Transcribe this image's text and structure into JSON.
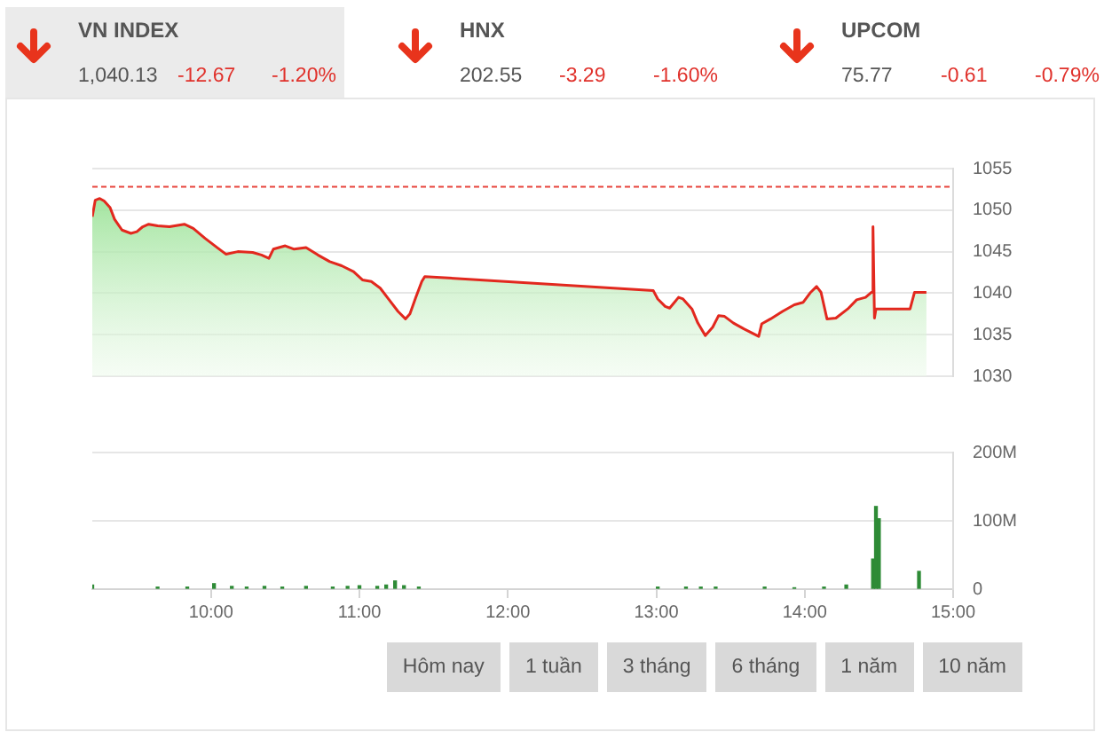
{
  "chart_data": [
    {
      "type": "other",
      "title": "VN INDEX",
      "annotations": [
        "1,040.13",
        "-12.67",
        "-1.20%"
      ]
    },
    {
      "type": "other",
      "title": "HNX",
      "annotations": [
        "202.55",
        "-3.29",
        "-1.60%"
      ]
    },
    {
      "type": "other",
      "title": "UPCOM",
      "annotations": [
        "75.77",
        "-0.61",
        "-0.79%"
      ]
    },
    {
      "type": "area",
      "color": "#e2281e",
      "xlim": [
        9.2,
        15
      ],
      "ylim": [
        1030,
        1055
      ],
      "yticks": [
        1030,
        1035,
        1040,
        1045,
        1050,
        1055
      ],
      "grid": "y",
      "tick_labels": "y",
      "ref_lines": [
        {
          "axis": "y",
          "value": 1052.8,
          "color": "#e8453c",
          "line_style": "dashed"
        }
      ],
      "x": [
        9.2,
        9.22,
        9.25,
        9.28,
        9.32,
        9.35,
        9.4,
        9.46,
        9.5,
        9.54,
        9.58,
        9.64,
        9.72,
        9.82,
        9.88,
        9.96,
        10.04,
        10.1,
        10.18,
        10.28,
        10.34,
        10.39,
        10.42,
        10.5,
        10.56,
        10.64,
        10.72,
        10.8,
        10.88,
        10.96,
        11.02,
        11.08,
        11.14,
        11.2,
        11.26,
        11.31,
        11.34,
        11.38,
        11.42,
        11.44,
        12.98,
        13.01,
        13.06,
        13.09,
        13.15,
        13.18,
        13.24,
        13.28,
        13.33,
        13.38,
        13.42,
        13.46,
        13.52,
        13.59,
        13.69,
        13.71,
        13.77,
        13.85,
        13.93,
        13.99,
        14.04,
        14.08,
        14.11,
        14.15,
        14.21,
        14.29,
        14.35,
        14.41,
        14.45,
        14.46,
        14.47,
        14.48,
        14.71,
        14.74,
        14.82
      ],
      "values": [
        1049.2,
        1051.2,
        1051.4,
        1051.1,
        1050.3,
        1048.9,
        1047.6,
        1047.2,
        1047.4,
        1048.0,
        1048.3,
        1048.1,
        1048.0,
        1048.3,
        1047.8,
        1046.6,
        1045.5,
        1044.7,
        1045.0,
        1044.9,
        1044.6,
        1044.2,
        1045.3,
        1045.7,
        1045.3,
        1045.5,
        1044.6,
        1043.8,
        1043.3,
        1042.6,
        1041.6,
        1041.4,
        1040.6,
        1039.2,
        1037.8,
        1036.9,
        1037.5,
        1039.5,
        1041.4,
        1042.0,
        1040.3,
        1039.3,
        1038.4,
        1038.2,
        1039.5,
        1039.3,
        1038.1,
        1036.4,
        1034.9,
        1035.9,
        1037.3,
        1037.2,
        1036.4,
        1035.7,
        1034.8,
        1036.3,
        1036.9,
        1037.8,
        1038.6,
        1038.9,
        1040.1,
        1040.8,
        1040.1,
        1036.9,
        1037.0,
        1038.1,
        1039.2,
        1039.5,
        1040.1,
        1048.0,
        1037.0,
        1038.1,
        1038.1,
        1040.1,
        1040.1
      ]
    },
    {
      "type": "bar",
      "color": "#2e8b36",
      "xlim": [
        9.2,
        15
      ],
      "xticks": [
        {
          "value": 10,
          "label": "10:00"
        },
        {
          "value": 11,
          "label": "11:00"
        },
        {
          "value": 12,
          "label": "12:00"
        },
        {
          "value": 13,
          "label": "13:00"
        },
        {
          "value": 14,
          "label": "14:00"
        },
        {
          "value": 15,
          "label": "15:00"
        }
      ],
      "ylim": [
        0,
        200
      ],
      "yticks": [
        0,
        {
          "value": 100,
          "label": "100M"
        },
        {
          "value": 200,
          "label": "200M"
        }
      ],
      "grid": "y",
      "x": [
        9.2,
        9.64,
        9.84,
        10.02,
        10.14,
        10.24,
        10.36,
        10.48,
        10.64,
        10.82,
        10.92,
        11.0,
        11.12,
        11.18,
        11.24,
        11.3,
        11.4,
        13.01,
        13.2,
        13.3,
        13.4,
        13.73,
        13.93,
        14.13,
        14.28,
        14.46,
        14.48,
        14.5,
        14.77
      ],
      "values": [
        6,
        3,
        3,
        8,
        4,
        3,
        4,
        3,
        4,
        3,
        4,
        5,
        4,
        6,
        12,
        5,
        3,
        3,
        3,
        3,
        3,
        3,
        2,
        3,
        6,
        44,
        121,
        103,
        26
      ]
    },
    {
      "type": "other",
      "annotations": [
        "Hôm nay",
        "1 tuần",
        "3 tháng",
        "6 tháng",
        "1 năm",
        "10 năm"
      ]
    }
  ]
}
